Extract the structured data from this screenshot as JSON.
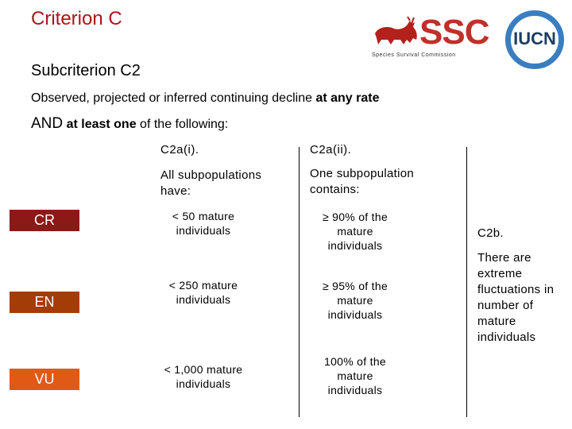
{
  "title": "Criterion C",
  "subtitle": "Subcriterion C2",
  "intro": {
    "line1_plain": "Observed, projected or inferred continuing decline ",
    "line1_bold": "at any rate",
    "line2_and": "AND",
    "line2_bold": " at least one",
    "line2_plain": " of the following:"
  },
  "columns": {
    "c2ai": {
      "head": "C2a(i).",
      "desc_line1": "All subpopulations",
      "desc_line2": "have:"
    },
    "c2aii": {
      "head": "C2a(ii).",
      "desc_line1": "One subpopulation",
      "desc_line2": "contains:"
    }
  },
  "categories": [
    {
      "label": "CR",
      "color": "#8b1a17"
    },
    {
      "label": "EN",
      "color": "#a33c07"
    },
    {
      "label": "VU",
      "color": "#e05a16"
    }
  ],
  "rows": {
    "cr": {
      "c2ai_line1": "< 50 mature",
      "c2ai_line2": "individuals",
      "c2aii_line1": "≥ 90% of the",
      "c2aii_line2": "mature",
      "c2aii_line3": "individuals"
    },
    "en": {
      "c2ai_line1": "< 250 mature",
      "c2ai_line2": "individuals",
      "c2aii_line1": "≥ 95% of the",
      "c2aii_line2": "mature",
      "c2aii_line3": "individuals"
    },
    "vu": {
      "c2ai_line1": "< 1,000 mature",
      "c2ai_line2": "individuals",
      "c2aii_line1": "100% of the",
      "c2aii_line2": "mature",
      "c2aii_line3": "individuals"
    }
  },
  "c2b": {
    "head": "C2b.",
    "lines": [
      "There are",
      "extreme",
      "fluctuations in",
      "number of",
      "mature",
      "individuals"
    ]
  },
  "logos": {
    "ssc_word": "SSC",
    "ssc_sub": "Species Survival Commission",
    "iucn_word": "IUCN"
  }
}
